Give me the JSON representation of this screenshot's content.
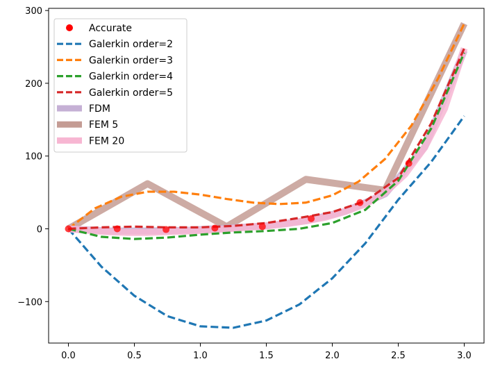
{
  "chart_data": {
    "type": "line",
    "title": "",
    "xlabel": "",
    "ylabel": "",
    "xlim": [
      -0.15,
      3.15
    ],
    "ylim": [
      -157,
      303
    ],
    "grid": false,
    "legend_position": "top-left",
    "x_ticks": [
      0.0,
      0.5,
      1.0,
      1.5,
      2.0,
      2.5,
      3.0
    ],
    "x_tick_labels": [
      "0.0",
      "0.5",
      "1.0",
      "1.5",
      "2.0",
      "2.5",
      "3.0"
    ],
    "y_ticks": [
      -100,
      0,
      100,
      200,
      300
    ],
    "y_tick_labels": [
      "−100",
      "0",
      "100",
      "200",
      "300"
    ],
    "series": [
      {
        "name": "Accurate",
        "kind": "scatter",
        "color": "#ff0000",
        "x": [
          0.0,
          0.37,
          0.74,
          1.11,
          1.47,
          1.84,
          2.21,
          2.58
        ],
        "y": [
          0,
          0,
          -1,
          1,
          3,
          14,
          36,
          90
        ]
      },
      {
        "name": "Galerkin order=2",
        "kind": "line",
        "style": "dashed",
        "color": "#1f77b4",
        "x": [
          0.0,
          0.25,
          0.5,
          0.75,
          1.0,
          1.25,
          1.5,
          1.75,
          2.0,
          2.25,
          2.5,
          2.75,
          3.0
        ],
        "y": [
          0,
          -52,
          -92,
          -120,
          -134,
          -136,
          -126,
          -104,
          -68,
          -20,
          40,
          92,
          155
        ]
      },
      {
        "name": "Galerkin order=3",
        "kind": "line",
        "style": "dashed",
        "color": "#ff7f0e",
        "x": [
          0.0,
          0.2,
          0.4,
          0.6,
          0.8,
          1.0,
          1.2,
          1.4,
          1.6,
          1.8,
          2.0,
          2.2,
          2.4,
          2.6,
          2.8,
          3.0
        ],
        "y": [
          0,
          28,
          44,
          51,
          51,
          47,
          41,
          36,
          34,
          36,
          46,
          65,
          96,
          142,
          206,
          282
        ]
      },
      {
        "name": "Galerkin order=4",
        "kind": "line",
        "style": "dashed",
        "color": "#2ca02c",
        "x": [
          0.0,
          0.25,
          0.5,
          0.75,
          1.0,
          1.25,
          1.5,
          1.75,
          2.0,
          2.25,
          2.5,
          2.75,
          3.0
        ],
        "y": [
          0,
          -11,
          -14,
          -12,
          -8,
          -5,
          -3,
          0,
          8,
          26,
          66,
          138,
          242
        ]
      },
      {
        "name": "Galerkin order=5",
        "kind": "line",
        "style": "dashed",
        "color": "#d62728",
        "x": [
          0.0,
          0.25,
          0.5,
          0.75,
          1.0,
          1.25,
          1.5,
          1.75,
          2.0,
          2.25,
          2.5,
          2.75,
          3.0
        ],
        "y": [
          0,
          2,
          3,
          2,
          2,
          4,
          8,
          15,
          23,
          38,
          70,
          145,
          248
        ]
      },
      {
        "name": "FDM",
        "kind": "line",
        "style": "thick",
        "color": "#c5b0d5",
        "x": [
          0.0,
          0.3,
          0.6,
          0.9,
          1.2,
          1.5,
          1.8,
          2.1,
          2.4,
          2.7,
          3.0
        ],
        "y": [
          0,
          -3,
          -3,
          -2,
          1,
          4,
          11,
          24,
          48,
          112,
          245
        ]
      },
      {
        "name": "FEM 5",
        "kind": "line",
        "style": "thick",
        "color": "#c49c94",
        "x": [
          0.0,
          0.6,
          1.2,
          1.8,
          2.4,
          3.0
        ],
        "y": [
          0,
          62,
          3,
          68,
          53,
          282
        ]
      },
      {
        "name": "FEM 20",
        "kind": "line",
        "style": "thick",
        "color": "#f7b6d2",
        "x": [
          0.0,
          0.15,
          0.3,
          0.45,
          0.6,
          0.75,
          0.9,
          1.05,
          1.2,
          1.35,
          1.5,
          1.65,
          1.8,
          1.95,
          2.1,
          2.25,
          2.4,
          2.55,
          2.7,
          2.85,
          3.0
        ],
        "y": [
          0,
          -2,
          -4,
          -5,
          -5,
          -4,
          -3,
          -2,
          0,
          2,
          4,
          7,
          11,
          16,
          24,
          34,
          50,
          75,
          112,
          165,
          248
        ]
      }
    ]
  }
}
